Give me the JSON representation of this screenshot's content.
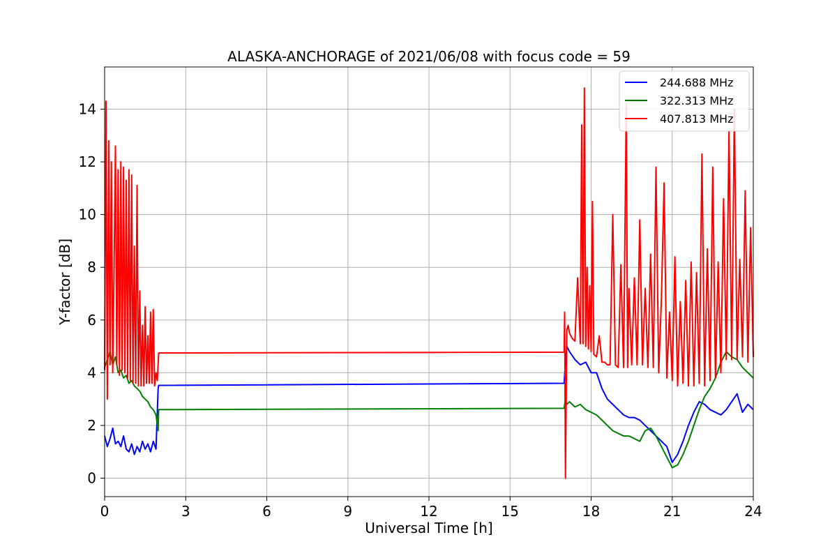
{
  "chart_data": {
    "type": "line",
    "title": "ALASKA-ANCHORAGE of 2021/06/08 with focus code = 59",
    "xlabel": "Universal Time [h]",
    "ylabel": "Y-factor [dB]",
    "xlim": [
      0,
      24
    ],
    "ylim": [
      -0.7,
      15.6
    ],
    "xticks": [
      0,
      3,
      6,
      9,
      12,
      15,
      18,
      21,
      24
    ],
    "yticks": [
      0,
      2,
      4,
      6,
      8,
      10,
      12,
      14
    ],
    "grid": true,
    "legend_position": "top-right",
    "series": [
      {
        "name": "244.688 MHz",
        "color": "#0000ff",
        "x": [
          0,
          0.1,
          0.2,
          0.3,
          0.4,
          0.5,
          0.6,
          0.7,
          0.8,
          0.9,
          1.0,
          1.1,
          1.2,
          1.3,
          1.4,
          1.5,
          1.6,
          1.7,
          1.8,
          1.9,
          1.98,
          2.0,
          17.0,
          17.05,
          17.1,
          17.2,
          17.4,
          17.6,
          17.8,
          18.0,
          18.2,
          18.4,
          18.6,
          18.8,
          19.0,
          19.2,
          19.4,
          19.6,
          19.8,
          20.0,
          20.2,
          20.4,
          20.6,
          20.8,
          21.0,
          21.2,
          21.4,
          21.6,
          21.8,
          22.0,
          22.2,
          22.4,
          22.6,
          22.8,
          23.0,
          23.2,
          23.4,
          23.6,
          23.8,
          24.0
        ],
        "y": [
          1.6,
          1.2,
          1.5,
          1.9,
          1.3,
          1.4,
          1.2,
          1.6,
          1.1,
          1.0,
          1.3,
          0.9,
          1.2,
          1.0,
          1.4,
          1.1,
          1.3,
          1.0,
          1.4,
          1.1,
          3.4,
          3.52,
          3.6,
          4.4,
          5.0,
          4.8,
          4.5,
          4.3,
          4.4,
          4.0,
          4.0,
          3.4,
          3.0,
          2.8,
          2.6,
          2.4,
          2.3,
          2.3,
          2.2,
          2.0,
          1.8,
          1.6,
          1.4,
          1.2,
          0.6,
          0.9,
          1.4,
          2.0,
          2.5,
          2.9,
          2.8,
          2.6,
          2.5,
          2.4,
          2.6,
          2.9,
          3.2,
          2.5,
          2.8,
          2.6
        ]
      },
      {
        "name": "322.313 MHz",
        "color": "#008000",
        "x": [
          0,
          0.1,
          0.2,
          0.3,
          0.4,
          0.5,
          0.6,
          0.7,
          0.8,
          0.9,
          1.0,
          1.1,
          1.2,
          1.3,
          1.4,
          1.5,
          1.6,
          1.7,
          1.8,
          1.9,
          1.98,
          2.0,
          17.0,
          17.05,
          17.1,
          17.2,
          17.4,
          17.6,
          17.8,
          18.0,
          18.2,
          18.4,
          18.6,
          18.8,
          19.0,
          19.2,
          19.4,
          19.6,
          19.8,
          20.0,
          20.2,
          20.4,
          20.6,
          20.8,
          21.0,
          21.2,
          21.4,
          21.6,
          21.8,
          22.0,
          22.2,
          22.4,
          22.6,
          22.8,
          23.0,
          23.2,
          23.4,
          23.6,
          23.8,
          24.0
        ],
        "y": [
          4.2,
          4.5,
          4.8,
          4.3,
          4.6,
          4.0,
          4.1,
          3.8,
          3.9,
          3.6,
          3.7,
          3.5,
          3.4,
          3.3,
          3.1,
          3.0,
          2.9,
          2.7,
          2.6,
          2.4,
          1.8,
          2.6,
          2.65,
          3.0,
          2.8,
          2.9,
          2.7,
          2.8,
          2.6,
          2.5,
          2.4,
          2.2,
          2.0,
          1.8,
          1.7,
          1.6,
          1.6,
          1.5,
          1.4,
          1.8,
          1.9,
          1.6,
          1.2,
          0.8,
          0.4,
          0.5,
          0.9,
          1.4,
          2.0,
          2.6,
          3.1,
          3.4,
          3.8,
          4.4,
          4.8,
          4.6,
          4.5,
          4.2,
          4.0,
          3.8
        ]
      },
      {
        "name": "407.813 MHz",
        "color": "#ff0000",
        "x": [
          0,
          0.05,
          0.1,
          0.15,
          0.2,
          0.25,
          0.3,
          0.35,
          0.4,
          0.45,
          0.5,
          0.55,
          0.6,
          0.65,
          0.7,
          0.75,
          0.8,
          0.85,
          0.9,
          0.95,
          1.0,
          1.05,
          1.1,
          1.15,
          1.2,
          1.25,
          1.3,
          1.35,
          1.4,
          1.45,
          1.5,
          1.55,
          1.6,
          1.65,
          1.7,
          1.75,
          1.8,
          1.85,
          1.9,
          1.95,
          2.0,
          17.0,
          17.02,
          17.05,
          17.1,
          17.15,
          17.2,
          17.3,
          17.4,
          17.5,
          17.6,
          17.65,
          17.7,
          17.75,
          17.8,
          17.85,
          17.9,
          17.95,
          18.0,
          18.05,
          18.1,
          18.2,
          18.3,
          18.4,
          18.5,
          18.6,
          18.7,
          18.8,
          18.9,
          19.0,
          19.1,
          19.2,
          19.3,
          19.35,
          19.4,
          19.5,
          19.6,
          19.7,
          19.8,
          19.9,
          20.0,
          20.1,
          20.2,
          20.3,
          20.4,
          20.5,
          20.6,
          20.7,
          20.8,
          20.9,
          21.0,
          21.1,
          21.2,
          21.3,
          21.4,
          21.5,
          21.6,
          21.7,
          21.8,
          21.9,
          22.0,
          22.1,
          22.2,
          22.3,
          22.4,
          22.5,
          22.6,
          22.7,
          22.8,
          22.9,
          23.0,
          23.1,
          23.2,
          23.3,
          23.4,
          23.5,
          23.6,
          23.7,
          23.8,
          23.9,
          24.0
        ],
        "y": [
          4.1,
          14.3,
          3.0,
          12.8,
          4.3,
          12.0,
          4.0,
          8.0,
          12.6,
          4.3,
          11.7,
          3.9,
          12.0,
          4.1,
          11.8,
          4.0,
          11.3,
          3.8,
          11.7,
          3.7,
          11.5,
          3.6,
          8.8,
          3.6,
          11.1,
          3.5,
          7.1,
          3.5,
          5.8,
          3.5,
          6.5,
          3.6,
          5.4,
          3.6,
          6.3,
          3.6,
          6.4,
          3.5,
          4.0,
          3.7,
          4.75,
          4.78,
          6.3,
          0.0,
          5.6,
          5.8,
          5.5,
          5.3,
          5.2,
          7.6,
          5.1,
          13.4,
          5.1,
          14.8,
          5.0,
          8.0,
          4.9,
          7.3,
          4.8,
          10.5,
          4.7,
          4.6,
          5.4,
          4.4,
          4.4,
          4.3,
          4.3,
          10.0,
          4.3,
          4.2,
          8.1,
          4.2,
          14.2,
          4.2,
          7.2,
          4.3,
          7.6,
          4.3,
          9.8,
          4.3,
          7.2,
          4.2,
          8.5,
          4.2,
          11.8,
          4.0,
          6.8,
          11.2,
          3.8,
          6.3,
          3.7,
          8.4,
          3.5,
          6.7,
          3.6,
          7.5,
          3.5,
          8.2,
          3.5,
          7.8,
          3.6,
          12.3,
          3.5,
          8.7,
          3.7,
          11.8,
          3.8,
          8.2,
          4.0,
          10.6,
          4.5,
          13.2,
          4.5,
          14.0,
          4.5,
          8.3,
          4.6,
          10.9,
          4.4,
          9.5,
          4.6
        ]
      }
    ]
  }
}
